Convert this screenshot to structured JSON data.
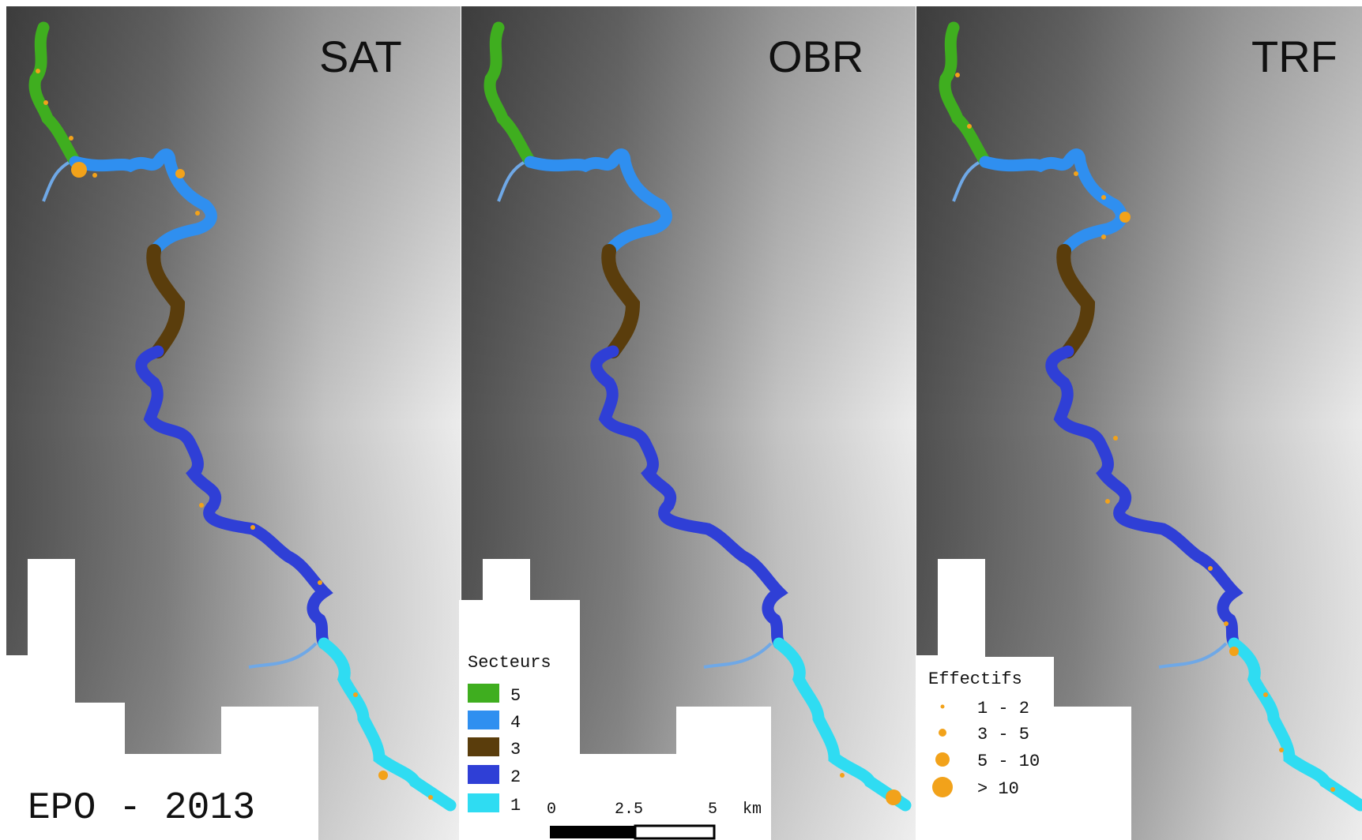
{
  "panels": [
    {
      "label": "SAT"
    },
    {
      "label": "OBR"
    },
    {
      "label": "TRF"
    }
  ],
  "caption": "EPO - 2013",
  "sectors_legend": {
    "title": "Secteurs",
    "items": [
      {
        "label": "5",
        "color": "#3fae1f"
      },
      {
        "label": "4",
        "color": "#2f8ff0"
      },
      {
        "label": "3",
        "color": "#5a3d0c"
      },
      {
        "label": "2",
        "color": "#2f3fd6"
      },
      {
        "label": "1",
        "color": "#2fdcf2"
      }
    ]
  },
  "effectifs_legend": {
    "title": "Effectifs",
    "color": "#f2a21a",
    "items": [
      {
        "label": "1 - 2"
      },
      {
        "label": "3 - 5"
      },
      {
        "label": "5 - 10"
      },
      {
        "label": "> 10"
      }
    ]
  },
  "scalebar": {
    "ticks": [
      "0",
      "2.5",
      "5"
    ],
    "unit": "km"
  },
  "colors": {
    "background": "#ffffff",
    "relief_dark": "#3c3c3c",
    "relief_light": "#e6e6e6",
    "tributary": "#6fa8e6"
  }
}
